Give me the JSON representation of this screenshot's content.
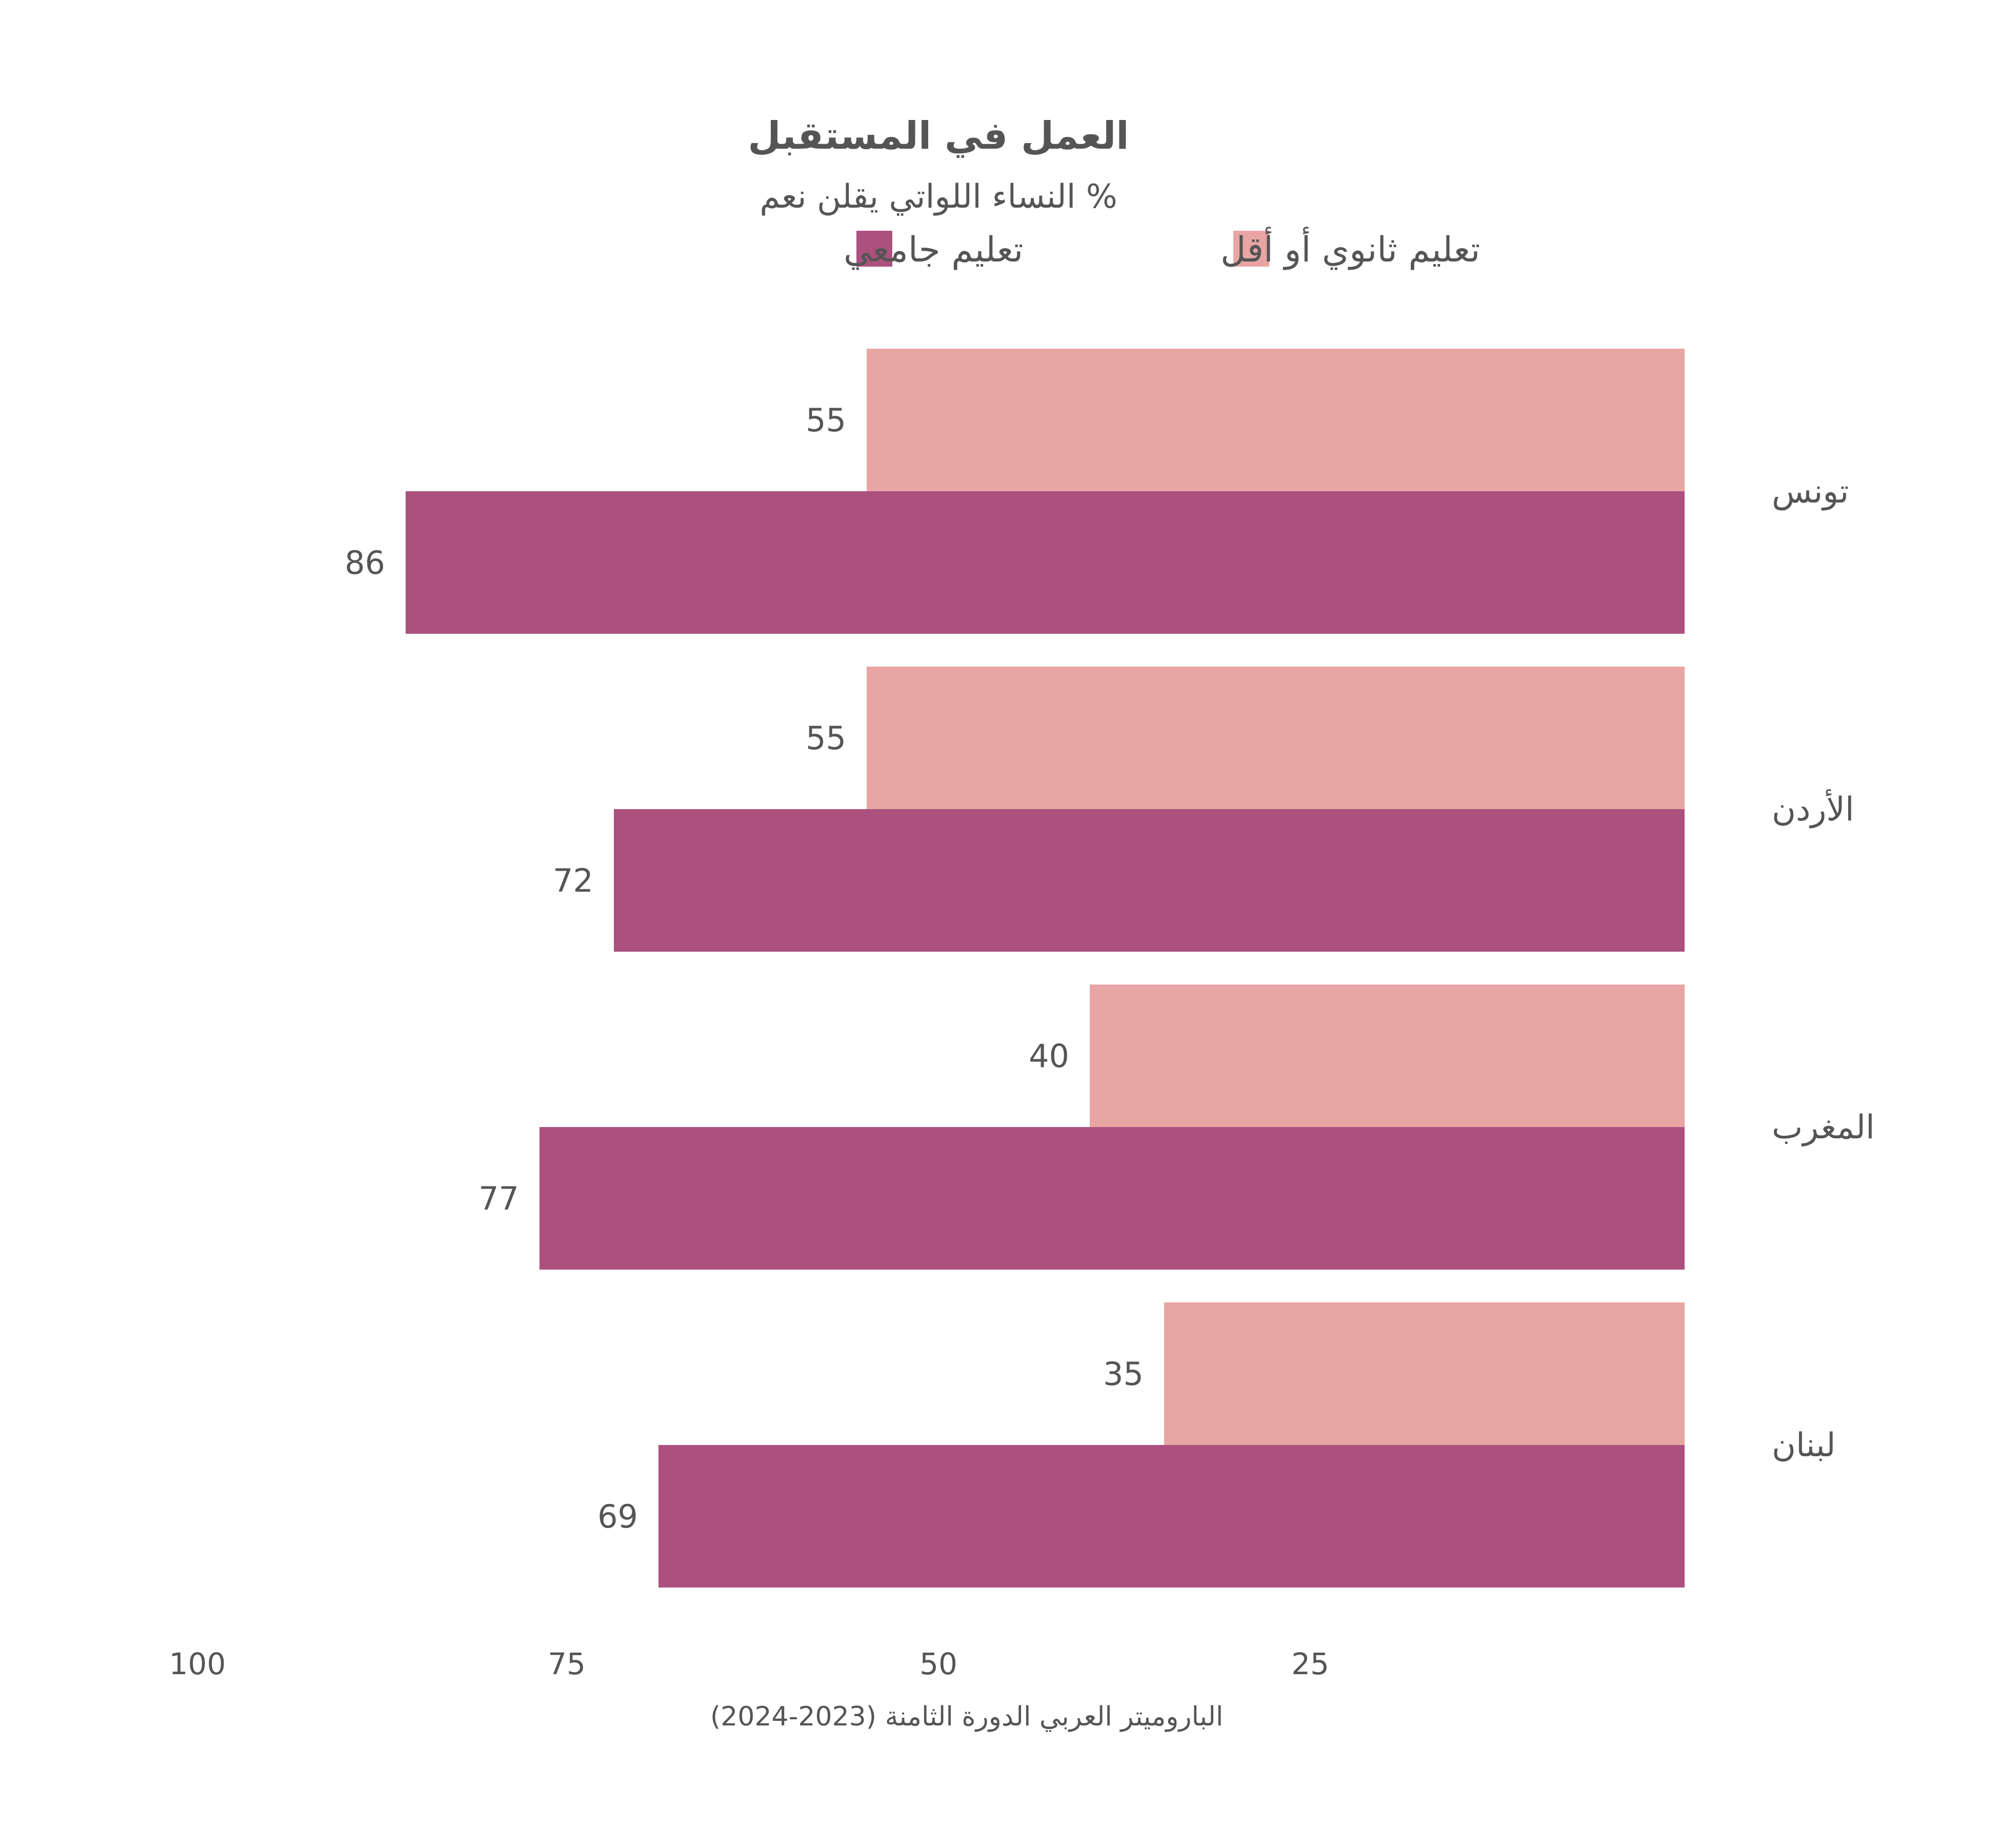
{
  "chart_data": {
    "type": "bar",
    "orientation": "horizontal",
    "direction": "rtl",
    "title": "العمل في المستقبل",
    "subtitle": "% النساء اللواتي يقلن نعم",
    "categories": [
      "تونس",
      "الأردن",
      "المغرب",
      "لبنان"
    ],
    "series": [
      {
        "name": "تعليم ثانوي أو أقل",
        "color": "#e8a5a4",
        "values": [
          55,
          55,
          40,
          35
        ]
      },
      {
        "name": "تعليم جامعي",
        "color": "#ac517e",
        "values": [
          86,
          72,
          77,
          69
        ]
      }
    ],
    "xaxis": {
      "ticks": [
        100,
        75,
        50,
        25
      ],
      "range": [
        0,
        100
      ]
    },
    "grid": false,
    "legend": "top-center",
    "source": "الباروميتر العربي الدورة الثامنة (2023-2024)"
  }
}
